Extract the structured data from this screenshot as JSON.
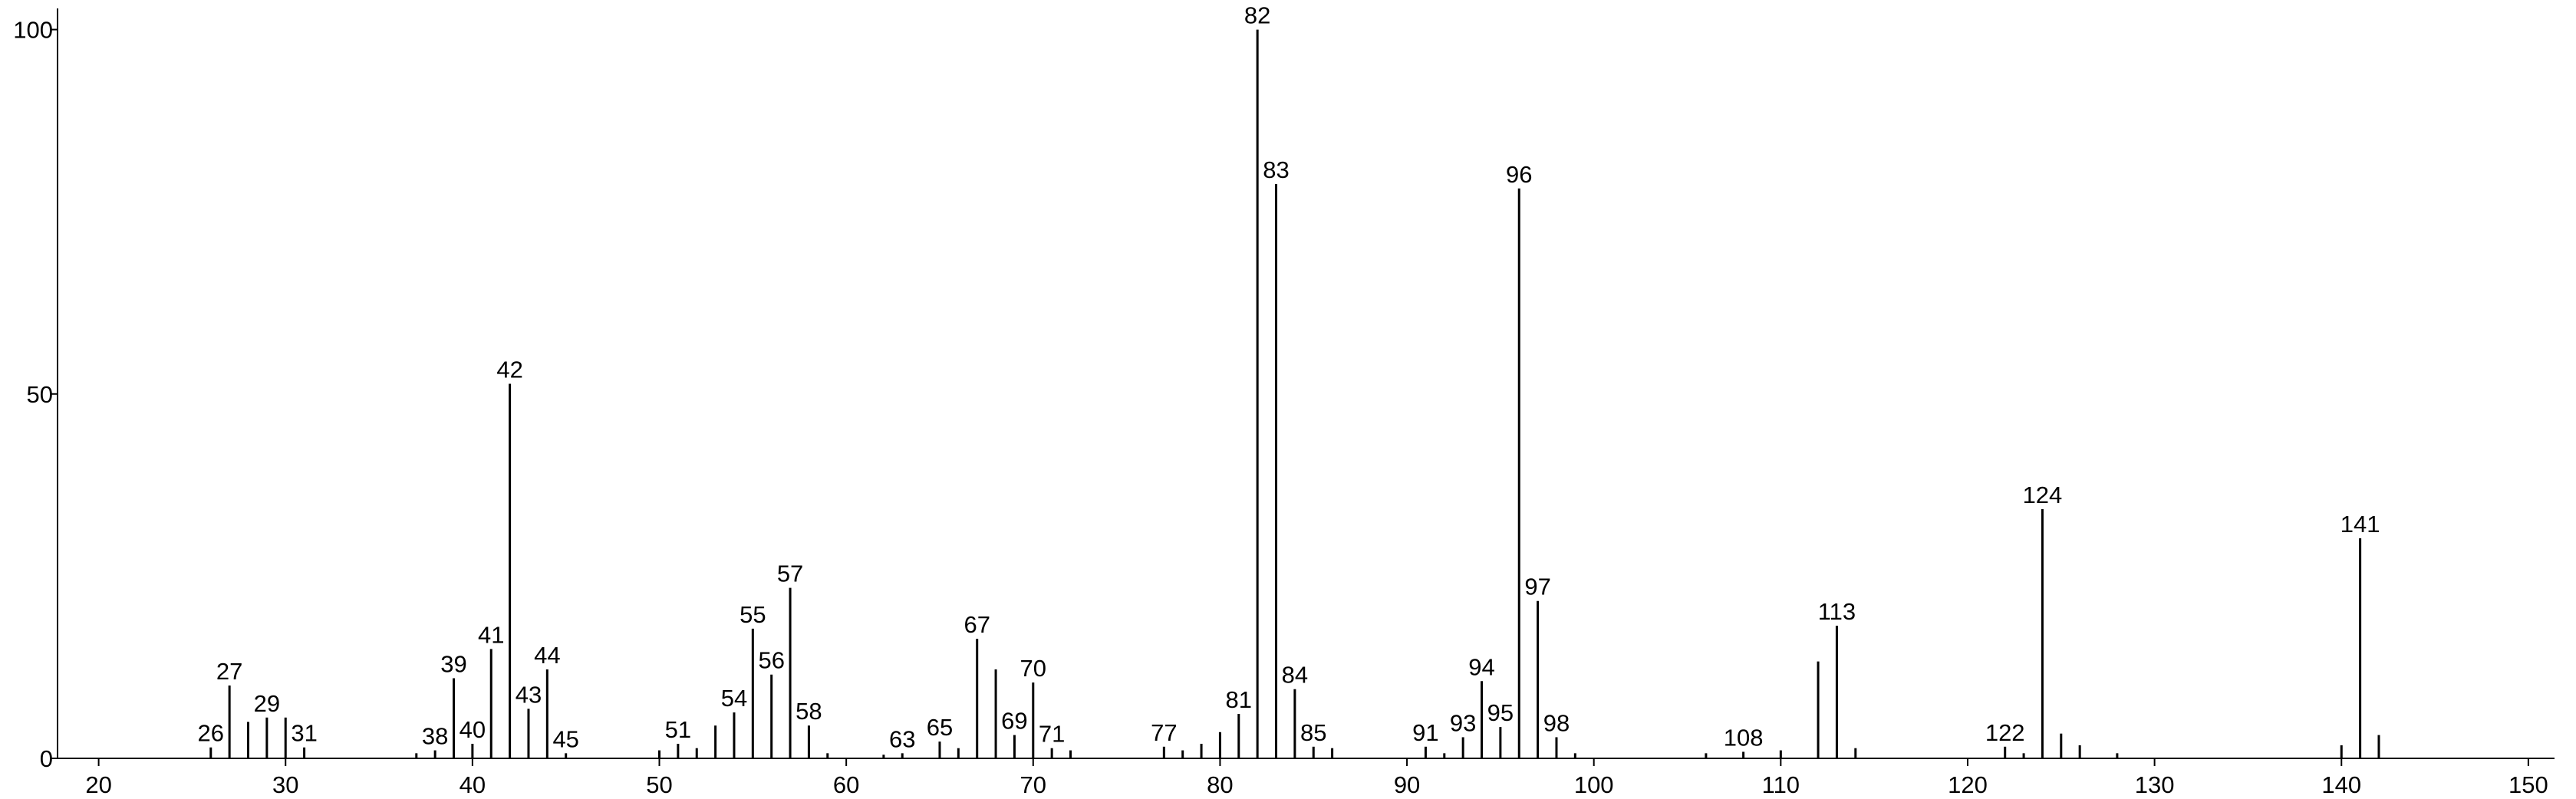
{
  "chart_data": {
    "type": "stem",
    "x": [
      26,
      27,
      28,
      29,
      30,
      31,
      37,
      38,
      39,
      40,
      41,
      42,
      43,
      44,
      45,
      50,
      51,
      52,
      53,
      54,
      55,
      56,
      57,
      58,
      59,
      62,
      63,
      65,
      66,
      67,
      68,
      69,
      70,
      71,
      72,
      77,
      78,
      79,
      80,
      81,
      82,
      83,
      84,
      85,
      86,
      91,
      92,
      93,
      94,
      95,
      96,
      97,
      98,
      99,
      106,
      108,
      110,
      112,
      113,
      114,
      122,
      123,
      124,
      125,
      126,
      128,
      140,
      141,
      142
    ],
    "values": [
      1.5,
      10,
      5,
      5.6,
      5.6,
      1.5,
      0.7,
      1.1,
      11,
      2,
      15,
      51.4,
      6.8,
      12.2,
      0.7,
      1.1,
      2,
      1.4,
      4.5,
      6.3,
      17.8,
      11.5,
      23.4,
      4.5,
      0.7,
      0.5,
      0.7,
      2.3,
      1.4,
      16.4,
      12.2,
      3.2,
      10.4,
      1.4,
      1.1,
      1.6,
      1.1,
      2,
      3.6,
      6.1,
      100,
      78.8,
      9.5,
      1.6,
      1.4,
      1.6,
      0.7,
      2.9,
      10.6,
      4.3,
      78.2,
      21.6,
      2.9,
      0.7,
      0.7,
      0.9,
      1.1,
      13.3,
      18.2,
      1.4,
      1.6,
      0.7,
      34.2,
      3.4,
      1.8,
      0.7,
      1.8,
      30.2,
      3.2
    ],
    "x_labels": [
      "26",
      "27",
      null,
      "29",
      null,
      "31",
      null,
      "38",
      "39",
      "40",
      "41",
      "42",
      "43",
      "44",
      "45",
      null,
      "51",
      null,
      null,
      "54",
      "55",
      "56",
      "57",
      "58",
      null,
      null,
      "63",
      "65",
      null,
      "67",
      null,
      "69",
      "70",
      "71",
      null,
      "77",
      null,
      null,
      null,
      "81",
      "82",
      "83",
      "84",
      "85",
      null,
      "91",
      null,
      "93",
      "94",
      "95",
      "96",
      "97",
      "98",
      null,
      null,
      "108",
      null,
      null,
      "113",
      null,
      "122",
      null,
      "124",
      null,
      null,
      null,
      null,
      "141",
      null
    ],
    "color": "#000000",
    "xlim": [
      17.8,
      151.4
    ],
    "xticks": [
      20,
      30,
      40,
      50,
      60,
      70,
      80,
      90,
      100,
      110,
      120,
      130,
      140,
      150
    ],
    "ylim": [
      0,
      102.9
    ],
    "yticks": [
      0,
      50,
      100
    ]
  }
}
